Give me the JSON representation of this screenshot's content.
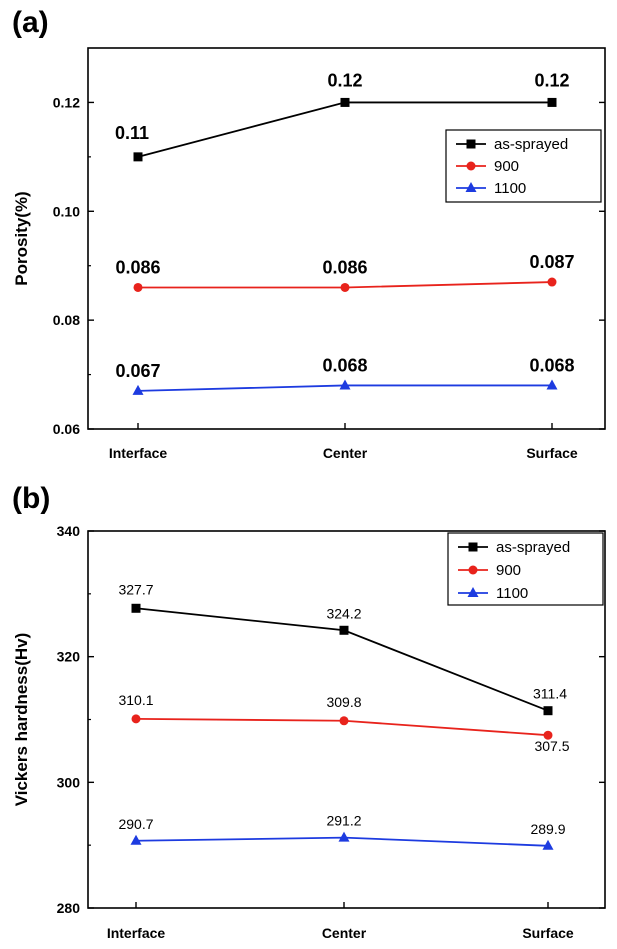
{
  "chart_data": [
    {
      "panel_label": "(a)",
      "type": "line",
      "categories": [
        "Interface",
        "Center",
        "Surface"
      ],
      "ylabel": "Porosity(%)",
      "xlabel": "",
      "ylim": [
        0.06,
        0.13
      ],
      "yticks": [
        "0.06",
        "0.08",
        "0.10",
        "0.12"
      ],
      "ytick_values": [
        0.06,
        0.08,
        0.1,
        0.12
      ],
      "legend_position": "upper-right",
      "series": [
        {
          "name": "as-sprayed",
          "color": "#000000",
          "marker": "square",
          "values": [
            0.11,
            0.12,
            0.12
          ],
          "labels": [
            "0.11",
            "0.12",
            "0.12"
          ]
        },
        {
          "name": "900",
          "color": "#e8231c",
          "marker": "circle",
          "values": [
            0.086,
            0.086,
            0.087
          ],
          "labels": [
            "0.086",
            "0.086",
            "0.087"
          ]
        },
        {
          "name": "1100",
          "color": "#1d3be0",
          "marker": "triangle",
          "values": [
            0.067,
            0.068,
            0.068
          ],
          "labels": [
            "0.067",
            "0.068",
            "0.068"
          ]
        }
      ]
    },
    {
      "panel_label": "(b)",
      "type": "line",
      "categories": [
        "Interface",
        "Center",
        "Surface"
      ],
      "ylabel": "Vickers hardness(Hv)",
      "xlabel": "",
      "ylim": [
        280,
        340
      ],
      "yticks": [
        "280",
        "300",
        "320",
        "340"
      ],
      "ytick_values": [
        280,
        300,
        320,
        340
      ],
      "legend_position": "upper-right",
      "series": [
        {
          "name": "as-sprayed",
          "color": "#000000",
          "marker": "square",
          "values": [
            327.7,
            324.2,
            311.4
          ],
          "labels": [
            "327.7",
            "324.2",
            "311.4"
          ]
        },
        {
          "name": "900",
          "color": "#e8231c",
          "marker": "circle",
          "values": [
            310.1,
            309.8,
            307.5
          ],
          "labels": [
            "310.1",
            "309.8",
            "307.5"
          ]
        },
        {
          "name": "1100",
          "color": "#1d3be0",
          "marker": "triangle",
          "values": [
            290.7,
            291.2,
            289.9
          ],
          "labels": [
            "290.7",
            "291.2",
            "289.9"
          ]
        }
      ]
    }
  ]
}
